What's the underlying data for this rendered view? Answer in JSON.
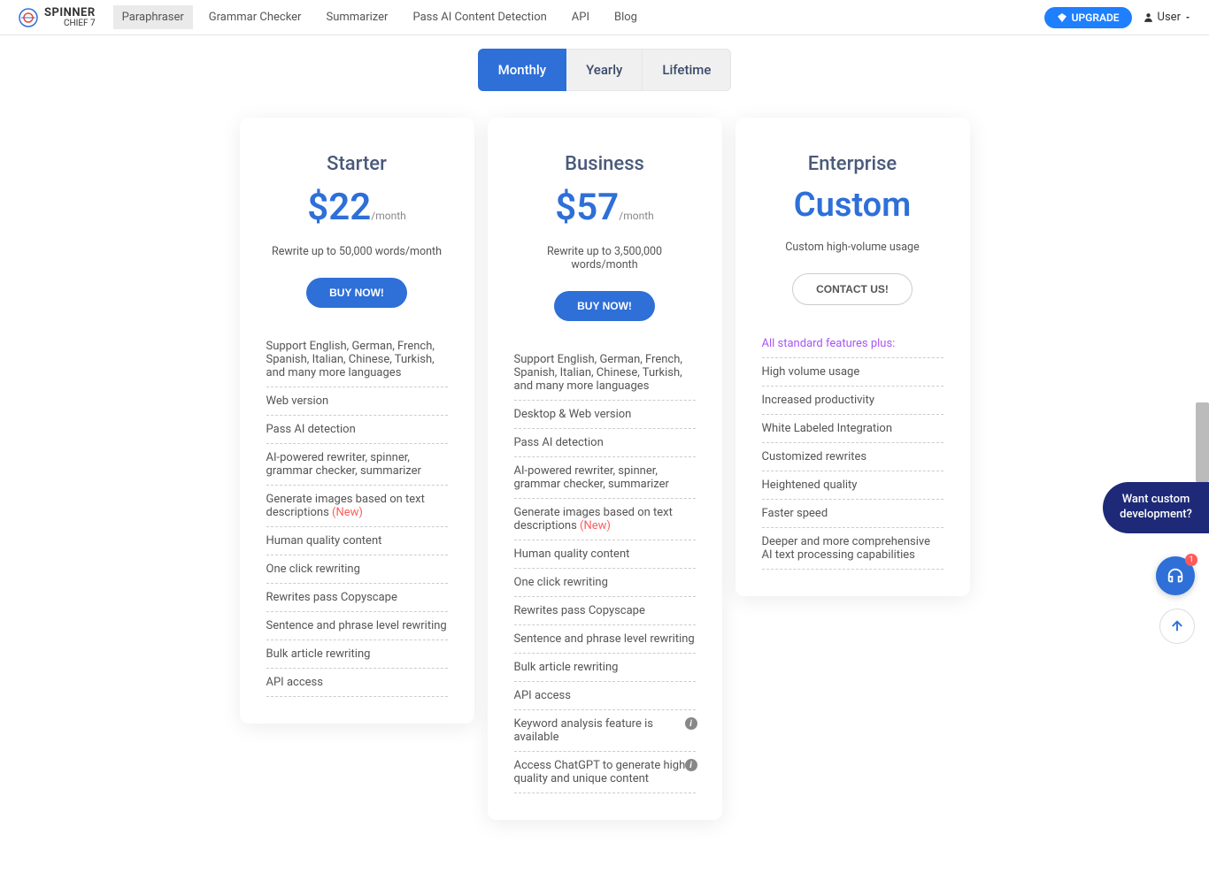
{
  "brand": {
    "name": "SPINNER",
    "sub": "CHIEF 7"
  },
  "nav": {
    "links": [
      "Paraphraser",
      "Grammar Checker",
      "Summarizer",
      "Pass AI Content Detection",
      "API",
      "Blog"
    ],
    "active_index": 0,
    "upgrade": "UPGRADE",
    "user": "User"
  },
  "billing_tabs": {
    "labels": [
      "Monthly",
      "Yearly",
      "Lifetime"
    ],
    "active_index": 0
  },
  "plans": [
    {
      "name": "Starter",
      "price": "$22",
      "suffix": "/month",
      "desc": "Rewrite up to 50,000 words/month",
      "btn": "BUY NOW!",
      "btn_style": "primary",
      "features": [
        {
          "text": "Support English, German, French, Spanish, Italian, Chinese, Turkish, and many more languages"
        },
        {
          "text": "Web version"
        },
        {
          "text": "Pass AI detection"
        },
        {
          "text": "AI-powered rewriter, spinner, grammar checker, summarizer"
        },
        {
          "text": "Generate images based on text descriptions ",
          "new": "(New)"
        },
        {
          "text": "Human quality content"
        },
        {
          "text": "One click rewriting"
        },
        {
          "text": "Rewrites pass Copyscape"
        },
        {
          "text": "Sentence and phrase level rewriting"
        },
        {
          "text": "Bulk article rewriting"
        },
        {
          "text": "API access"
        }
      ]
    },
    {
      "name": "Business",
      "price": "$57",
      "suffix": "/month",
      "desc": "Rewrite up to 3,500,000 words/month",
      "btn": "BUY NOW!",
      "btn_style": "primary",
      "features": [
        {
          "text": "Support English, German, French, Spanish, Italian, Chinese, Turkish, and many more languages"
        },
        {
          "text": "Desktop & Web version"
        },
        {
          "text": "Pass AI detection"
        },
        {
          "text": "AI-powered rewriter, spinner, grammar checker, summarizer"
        },
        {
          "text": "Generate images based on text descriptions ",
          "new": "(New)"
        },
        {
          "text": "Human quality content"
        },
        {
          "text": "One click rewriting"
        },
        {
          "text": "Rewrites pass Copyscape"
        },
        {
          "text": "Sentence and phrase level rewriting"
        },
        {
          "text": "Bulk article rewriting"
        },
        {
          "text": "API access"
        },
        {
          "text": "Keyword analysis feature is available",
          "info": true
        },
        {
          "text": "Access ChatGPT to generate high-quality and unique content",
          "info": true
        }
      ]
    },
    {
      "name": "Enterprise",
      "price": "Custom",
      "suffix": "",
      "desc": "Custom high-volume usage",
      "btn": "CONTACT US!",
      "btn_style": "outline",
      "features": [
        {
          "text": "All standard features plus:",
          "highlight": true
        },
        {
          "text": "High volume usage"
        },
        {
          "text": "Increased productivity"
        },
        {
          "text": "White Labeled Integration"
        },
        {
          "text": "Customized rewrites"
        },
        {
          "text": "Heightened quality"
        },
        {
          "text": "Faster speed"
        },
        {
          "text": "Deeper and more comprehensive AI text processing capabilities"
        }
      ]
    }
  ],
  "side_tab": "Want custom development?",
  "chat_badge": "1"
}
